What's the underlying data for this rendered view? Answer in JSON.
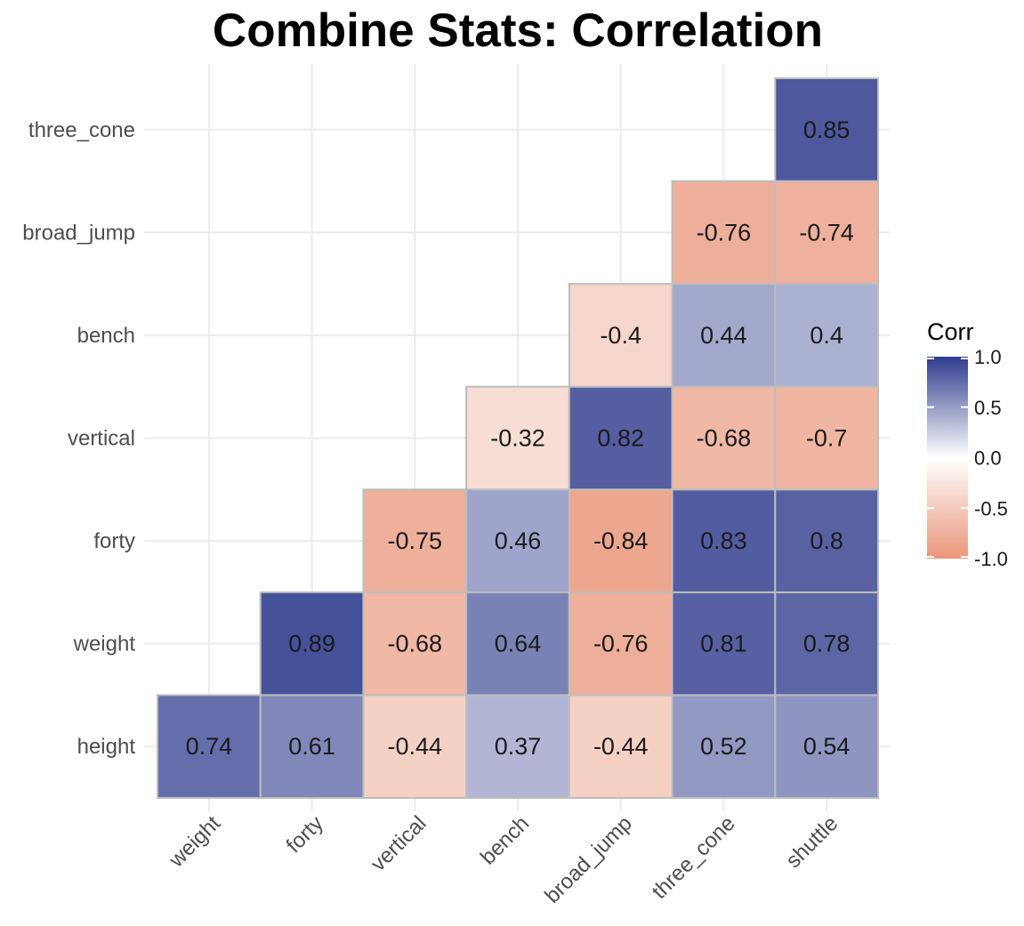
{
  "chart_data": {
    "type": "heatmap",
    "title": "Combine Stats: Correlation",
    "xlabel": "",
    "ylabel": "",
    "x_categories": [
      "weight",
      "forty",
      "vertical",
      "bench",
      "broad_jump",
      "three_cone",
      "shuttle"
    ],
    "y_categories": [
      "height",
      "weight",
      "forty",
      "vertical",
      "bench",
      "broad_jump",
      "three_cone"
    ],
    "cells": [
      {
        "x": "weight",
        "y": "height",
        "value": 0.74,
        "label": "0.74"
      },
      {
        "x": "forty",
        "y": "height",
        "value": 0.61,
        "label": "0.61"
      },
      {
        "x": "vertical",
        "y": "height",
        "value": -0.44,
        "label": "-0.44"
      },
      {
        "x": "bench",
        "y": "height",
        "value": 0.37,
        "label": "0.37"
      },
      {
        "x": "broad_jump",
        "y": "height",
        "value": -0.44,
        "label": "-0.44"
      },
      {
        "x": "three_cone",
        "y": "height",
        "value": 0.52,
        "label": "0.52"
      },
      {
        "x": "shuttle",
        "y": "height",
        "value": 0.54,
        "label": "0.54"
      },
      {
        "x": "forty",
        "y": "weight",
        "value": 0.89,
        "label": "0.89"
      },
      {
        "x": "vertical",
        "y": "weight",
        "value": -0.68,
        "label": "-0.68"
      },
      {
        "x": "bench",
        "y": "weight",
        "value": 0.64,
        "label": "0.64"
      },
      {
        "x": "broad_jump",
        "y": "weight",
        "value": -0.76,
        "label": "-0.76"
      },
      {
        "x": "three_cone",
        "y": "weight",
        "value": 0.81,
        "label": "0.81"
      },
      {
        "x": "shuttle",
        "y": "weight",
        "value": 0.78,
        "label": "0.78"
      },
      {
        "x": "vertical",
        "y": "forty",
        "value": -0.75,
        "label": "-0.75"
      },
      {
        "x": "bench",
        "y": "forty",
        "value": 0.46,
        "label": "0.46"
      },
      {
        "x": "broad_jump",
        "y": "forty",
        "value": -0.84,
        "label": "-0.84"
      },
      {
        "x": "three_cone",
        "y": "forty",
        "value": 0.83,
        "label": "0.83"
      },
      {
        "x": "shuttle",
        "y": "forty",
        "value": 0.8,
        "label": "0.8"
      },
      {
        "x": "bench",
        "y": "vertical",
        "value": -0.32,
        "label": "-0.32"
      },
      {
        "x": "broad_jump",
        "y": "vertical",
        "value": 0.82,
        "label": "0.82"
      },
      {
        "x": "three_cone",
        "y": "vertical",
        "value": -0.68,
        "label": "-0.68"
      },
      {
        "x": "shuttle",
        "y": "vertical",
        "value": -0.7,
        "label": "-0.7"
      },
      {
        "x": "broad_jump",
        "y": "bench",
        "value": -0.4,
        "label": "-0.4"
      },
      {
        "x": "three_cone",
        "y": "bench",
        "value": 0.44,
        "label": "0.44"
      },
      {
        "x": "shuttle",
        "y": "bench",
        "value": 0.4,
        "label": "0.4"
      },
      {
        "x": "three_cone",
        "y": "broad_jump",
        "value": -0.76,
        "label": "-0.76"
      },
      {
        "x": "shuttle",
        "y": "broad_jump",
        "value": -0.74,
        "label": "-0.74"
      },
      {
        "x": "shuttle",
        "y": "three_cone",
        "value": 0.85,
        "label": "0.85"
      }
    ],
    "value_range": [
      -1,
      1
    ],
    "grid": true,
    "legend": {
      "title": "Corr",
      "position": "right",
      "ticks": [
        {
          "value": 1.0,
          "label": "1.0"
        },
        {
          "value": 0.5,
          "label": "0.5"
        },
        {
          "value": 0.0,
          "label": "0.0"
        },
        {
          "value": -0.5,
          "label": "-0.5"
        },
        {
          "value": -1.0,
          "label": "-1.0"
        }
      ]
    },
    "colors": {
      "high": "#2e3b8c",
      "mid": "#ffffff",
      "low": "#e9967a",
      "cell_border": "#bdbdbd",
      "grid": "#ebebeb"
    }
  }
}
